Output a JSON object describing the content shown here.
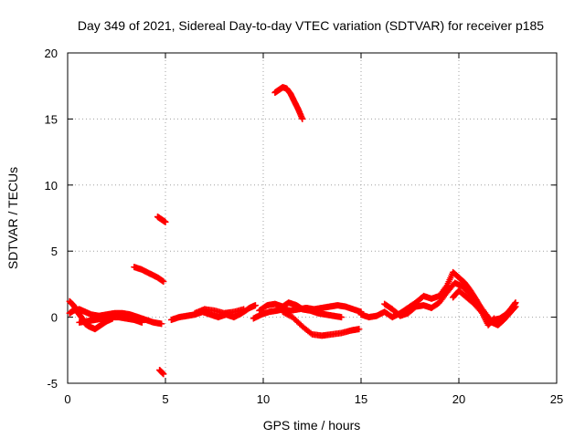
{
  "chart_data": {
    "type": "scatter",
    "title": "Day 349 of 2021, Sidereal Day-to-day VTEC variation (SDTVAR) for receiver p185",
    "xlabel": "GPS time / hours",
    "ylabel": "SDTVAR / TECUs",
    "xlim": [
      0,
      25
    ],
    "ylim": [
      -5,
      20
    ],
    "xticks": [
      "0",
      "5",
      "10",
      "15",
      "20",
      "25"
    ],
    "yticks": [
      "-5",
      "0",
      "5",
      "10",
      "15",
      "20"
    ],
    "grid": true,
    "marker": "+",
    "color": "#ff0000",
    "series": [
      {
        "name": "SDTVAR",
        "segments": [
          [
            [
              0.1,
              1.2
            ],
            [
              0.3,
              0.9
            ],
            [
              0.5,
              0.4
            ],
            [
              0.7,
              0.0
            ],
            [
              0.9,
              -0.5
            ],
            [
              1.1,
              -0.7
            ],
            [
              1.4,
              -0.9
            ],
            [
              1.7,
              -0.6
            ],
            [
              2.0,
              -0.3
            ],
            [
              2.3,
              -0.1
            ]
          ],
          [
            [
              0.1,
              0.3
            ],
            [
              0.3,
              0.5
            ],
            [
              0.6,
              0.6
            ],
            [
              0.9,
              0.4
            ],
            [
              1.2,
              0.2
            ],
            [
              1.6,
              0.1
            ],
            [
              2.0,
              0.2
            ],
            [
              2.4,
              0.3
            ],
            [
              2.8,
              0.3
            ],
            [
              3.2,
              0.2
            ],
            [
              3.6,
              0.0
            ],
            [
              4.0,
              -0.2
            ],
            [
              4.4,
              -0.4
            ],
            [
              4.8,
              -0.5
            ]
          ],
          [
            [
              0.6,
              -0.4
            ],
            [
              1.0,
              -0.3
            ],
            [
              1.4,
              -0.2
            ],
            [
              1.8,
              -0.1
            ],
            [
              2.2,
              0.0
            ],
            [
              2.6,
              0.0
            ],
            [
              3.0,
              -0.1
            ],
            [
              3.4,
              -0.2
            ],
            [
              3.8,
              -0.4
            ]
          ],
          [
            [
              3.4,
              3.8
            ],
            [
              3.8,
              3.6
            ],
            [
              4.2,
              3.3
            ],
            [
              4.6,
              3.0
            ],
            [
              4.9,
              2.7
            ]
          ],
          [
            [
              4.6,
              7.6
            ],
            [
              4.8,
              7.4
            ],
            [
              5.0,
              7.2
            ]
          ],
          [
            [
              4.7,
              -4.0
            ],
            [
              4.9,
              -4.3
            ]
          ],
          [
            [
              5.3,
              -0.2
            ],
            [
              5.7,
              0.0
            ],
            [
              6.1,
              0.1
            ],
            [
              6.5,
              0.2
            ],
            [
              6.9,
              0.4
            ],
            [
              7.3,
              0.2
            ],
            [
              7.7,
              0.0
            ],
            [
              8.1,
              0.2
            ],
            [
              8.5,
              0.0
            ],
            [
              8.9,
              0.3
            ],
            [
              9.3,
              0.7
            ],
            [
              9.6,
              0.9
            ]
          ],
          [
            [
              6.5,
              0.3
            ],
            [
              7.0,
              0.6
            ],
            [
              7.5,
              0.5
            ],
            [
              8.0,
              0.3
            ],
            [
              8.5,
              0.4
            ],
            [
              9.0,
              0.6
            ]
          ],
          [
            [
              9.5,
              -0.1
            ],
            [
              9.9,
              0.2
            ],
            [
              10.3,
              0.4
            ],
            [
              10.7,
              0.5
            ],
            [
              11.0,
              0.6
            ],
            [
              11.4,
              0.5
            ],
            [
              11.8,
              0.6
            ],
            [
              12.2,
              0.7
            ],
            [
              12.6,
              0.6
            ],
            [
              13.0,
              0.7
            ],
            [
              13.4,
              0.8
            ],
            [
              13.8,
              0.9
            ],
            [
              14.2,
              0.8
            ],
            [
              14.6,
              0.6
            ],
            [
              15.0,
              0.4
            ]
          ],
          [
            [
              9.8,
              0.5
            ],
            [
              10.2,
              0.9
            ],
            [
              10.6,
              1.0
            ],
            [
              11.0,
              0.8
            ],
            [
              11.3,
              1.1
            ],
            [
              11.7,
              0.9
            ],
            [
              12.0,
              0.6
            ],
            [
              12.4,
              0.5
            ],
            [
              12.8,
              0.3
            ],
            [
              13.2,
              0.2
            ],
            [
              13.6,
              0.1
            ],
            [
              14.0,
              0.0
            ]
          ],
          [
            [
              11.0,
              0.4
            ],
            [
              11.5,
              0.0
            ],
            [
              12.0,
              -0.7
            ],
            [
              12.5,
              -1.3
            ],
            [
              13.0,
              -1.4
            ],
            [
              13.5,
              -1.3
            ],
            [
              14.0,
              -1.2
            ],
            [
              14.5,
              -1.0
            ],
            [
              14.9,
              -0.9
            ]
          ],
          [
            [
              10.6,
              17.0
            ],
            [
              10.8,
              17.2
            ],
            [
              11.0,
              17.4
            ],
            [
              11.2,
              17.3
            ],
            [
              11.4,
              16.9
            ],
            [
              11.6,
              16.3
            ],
            [
              11.8,
              15.7
            ],
            [
              12.0,
              15.0
            ]
          ],
          [
            [
              15.0,
              0.2
            ],
            [
              15.4,
              0.0
            ],
            [
              15.8,
              0.1
            ],
            [
              16.2,
              0.4
            ],
            [
              16.6,
              0.0
            ],
            [
              17.0,
              0.3
            ],
            [
              17.4,
              0.7
            ],
            [
              17.8,
              1.1
            ],
            [
              18.2,
              1.6
            ],
            [
              18.6,
              1.4
            ],
            [
              19.0,
              1.6
            ],
            [
              19.4,
              2.4
            ],
            [
              19.7,
              3.4
            ],
            [
              20.0,
              3.0
            ],
            [
              20.3,
              2.6
            ],
            [
              20.6,
              2.0
            ],
            [
              20.9,
              1.3
            ],
            [
              21.2,
              0.5
            ],
            [
              21.5,
              -0.4
            ],
            [
              21.8,
              -0.2
            ],
            [
              22.1,
              -0.1
            ],
            [
              22.4,
              0.2
            ],
            [
              22.7,
              0.7
            ],
            [
              22.9,
              1.1
            ]
          ],
          [
            [
              16.2,
              1.0
            ],
            [
              16.6,
              0.6
            ],
            [
              17.0,
              0.1
            ],
            [
              17.4,
              0.3
            ],
            [
              17.8,
              0.8
            ],
            [
              18.2,
              0.9
            ],
            [
              18.6,
              0.7
            ],
            [
              19.0,
              1.1
            ],
            [
              19.4,
              1.9
            ],
            [
              19.8,
              2.6
            ],
            [
              20.2,
              2.3
            ],
            [
              20.6,
              1.7
            ],
            [
              21.0,
              1.0
            ],
            [
              21.4,
              0.2
            ],
            [
              21.7,
              -0.4
            ],
            [
              22.0,
              -0.6
            ],
            [
              22.3,
              -0.2
            ],
            [
              22.6,
              0.3
            ],
            [
              22.9,
              0.8
            ]
          ],
          [
            [
              19.7,
              1.5
            ],
            [
              20.0,
              2.0
            ],
            [
              20.4,
              1.5
            ],
            [
              20.8,
              1.0
            ],
            [
              21.2,
              0.3
            ],
            [
              21.5,
              -0.6
            ],
            [
              21.8,
              -0.1
            ]
          ]
        ]
      }
    ]
  }
}
